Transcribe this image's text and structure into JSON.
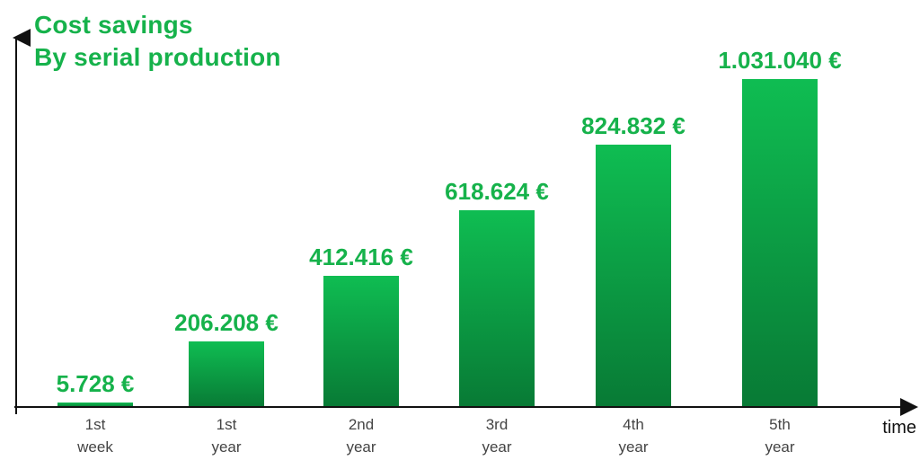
{
  "chart_data": {
    "type": "bar",
    "title": [
      "Cost savings",
      "By serial production"
    ],
    "xlabel": "time",
    "categories": [
      [
        "1st",
        "week"
      ],
      [
        "1st",
        "year"
      ],
      [
        "2nd",
        "year"
      ],
      [
        "3rd",
        "year"
      ],
      [
        "4th",
        "year"
      ],
      [
        "5th",
        "year"
      ]
    ],
    "values": [
      5728,
      206208,
      412416,
      618624,
      824832,
      1031040
    ],
    "value_labels": [
      "5.728 €",
      "206.208 €",
      "412.416 €",
      "618.624 €",
      "824.832 €",
      "1.031.040 €"
    ],
    "ylim": [
      0,
      1031040
    ],
    "grid": false,
    "legend": "none",
    "colors": {
      "bar_top": "#0fbd52",
      "bar_bottom": "#087a35",
      "label": "#16b24b",
      "axis": "#111111"
    }
  }
}
